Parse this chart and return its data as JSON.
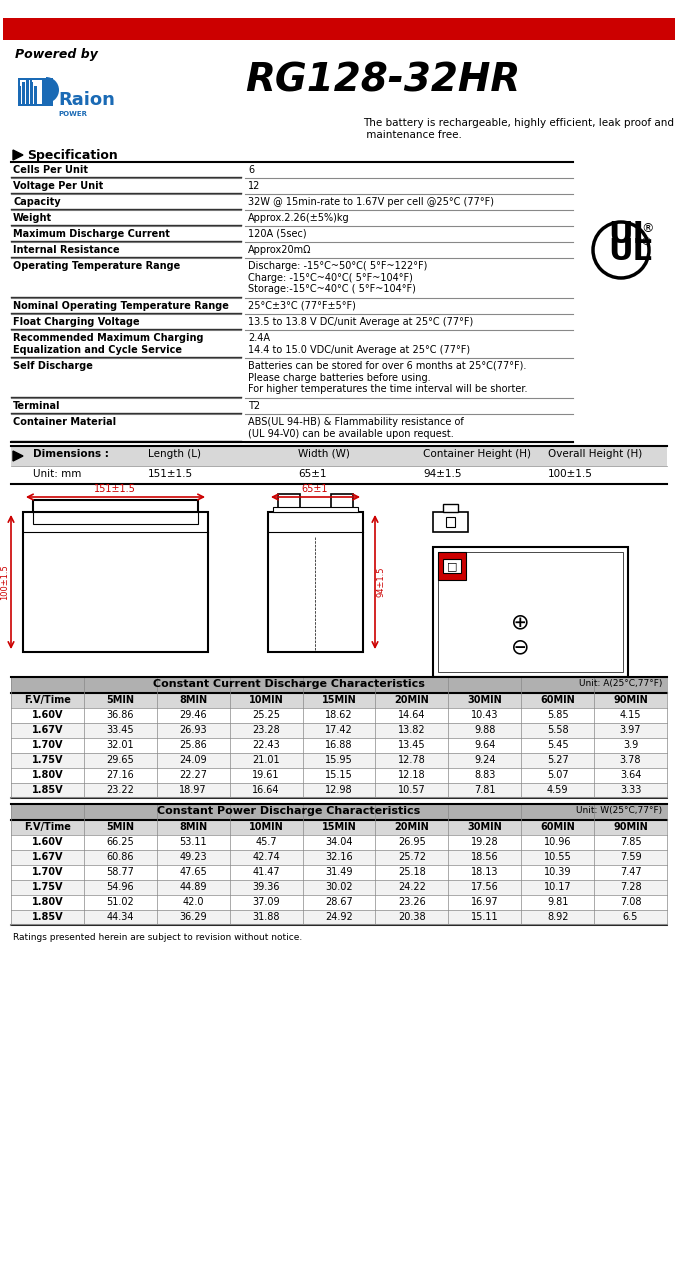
{
  "title": "RG128-32HR",
  "powered_by": "Powered by",
  "tagline": "The battery is rechargeable, highly efficient, leak proof and\n maintenance free.",
  "spec_title": "Specification",
  "spec_rows": [
    [
      "Cells Per Unit",
      "6"
    ],
    [
      "Voltage Per Unit",
      "12"
    ],
    [
      "Capacity",
      "32W @ 15min-rate to 1.67V per cell @25°C (77°F)"
    ],
    [
      "Weight",
      "Approx.2.26(±5%)kg"
    ],
    [
      "Maximum Discharge Current",
      "120A (5sec)"
    ],
    [
      "Internal Resistance",
      "Approx20mΩ"
    ],
    [
      "Operating Temperature Range",
      "Discharge: -15°C~50°C( 5°F~122°F)\nCharge: -15°C~40°C( 5°F~104°F)\nStorage:-15°C~40°C ( 5°F~104°F)"
    ],
    [
      "Nominal Operating Temperature Range",
      "25°C±3°C (77°F±5°F)"
    ],
    [
      "Float Charging Voltage",
      "13.5 to 13.8 V DC/unit Average at 25°C (77°F)"
    ],
    [
      "Recommended Maximum Charging\nEqualization and Cycle Service",
      "2.4A\n14.4 to 15.0 VDC/unit Average at 25°C (77°F)"
    ],
    [
      "Self Discharge",
      "Batteries can be stored for over 6 months at 25°C(77°F).\nPlease charge batteries before using.\nFor higher temperatures the time interval will be shorter."
    ],
    [
      "Terminal",
      "T2"
    ],
    [
      "Container Material",
      "ABS(UL 94-HB) & Flammability resistance of\n(UL 94-V0) can be available upon request."
    ]
  ],
  "dim_header": [
    "Dimensions :",
    "Length (L)",
    "Width (W)",
    "Container Height (H)",
    "Overall Height (H)"
  ],
  "dim_row": [
    "Unit: mm",
    "151±1.5",
    "65±1",
    "94±1.5",
    "100±1.5"
  ],
  "cc_title": "Constant Current Discharge Characteristics",
  "cc_unit": "Unit: A(25°C,77°F)",
  "cc_headers": [
    "F.V/Time",
    "5MIN",
    "8MIN",
    "10MIN",
    "15MIN",
    "20MIN",
    "30MIN",
    "60MIN",
    "90MIN"
  ],
  "cc_data": [
    [
      "1.60V",
      36.86,
      29.46,
      25.25,
      18.62,
      14.64,
      10.43,
      5.85,
      4.15
    ],
    [
      "1.67V",
      33.45,
      26.93,
      23.28,
      17.42,
      13.82,
      9.88,
      5.58,
      3.97
    ],
    [
      "1.70V",
      32.01,
      25.86,
      22.43,
      16.88,
      13.45,
      9.64,
      5.45,
      3.9
    ],
    [
      "1.75V",
      29.65,
      24.09,
      21.01,
      15.95,
      12.78,
      9.24,
      5.27,
      3.78
    ],
    [
      "1.80V",
      27.16,
      22.27,
      19.61,
      15.15,
      12.18,
      8.83,
      5.07,
      3.64
    ],
    [
      "1.85V",
      23.22,
      18.97,
      16.64,
      12.98,
      10.57,
      7.81,
      4.59,
      3.33
    ]
  ],
  "cp_title": "Constant Power Discharge Characteristics",
  "cp_unit": "Unit: W(25°C,77°F)",
  "cp_headers": [
    "F.V/Time",
    "5MIN",
    "8MIN",
    "10MIN",
    "15MIN",
    "20MIN",
    "30MIN",
    "60MIN",
    "90MIN"
  ],
  "cp_data": [
    [
      "1.60V",
      66.25,
      53.11,
      45.7,
      34.04,
      26.95,
      19.28,
      10.96,
      7.85
    ],
    [
      "1.67V",
      60.86,
      49.23,
      42.74,
      32.16,
      25.72,
      18.56,
      10.55,
      7.59
    ],
    [
      "1.70V",
      58.77,
      47.65,
      41.47,
      31.49,
      25.18,
      18.13,
      10.39,
      7.47
    ],
    [
      "1.75V",
      54.96,
      44.89,
      39.36,
      30.02,
      24.22,
      17.56,
      10.17,
      7.28
    ],
    [
      "1.80V",
      51.02,
      42.0,
      37.09,
      28.67,
      23.26,
      16.97,
      9.81,
      7.08
    ],
    [
      "1.85V",
      44.34,
      36.29,
      31.88,
      24.92,
      20.38,
      15.11,
      8.92,
      6.5
    ]
  ],
  "footer": "Ratings presented herein are subject to revision without notice.",
  "red_color": "#cc0000",
  "header_bg": "#d0d0d0",
  "cc_header_bg": "#c0c0c0",
  "row_alt1": "#ffffff",
  "row_alt2": "#f0f0f0",
  "border_color": "#555555",
  "text_color": "#000000",
  "bold_col_color": "#e8e8e8"
}
